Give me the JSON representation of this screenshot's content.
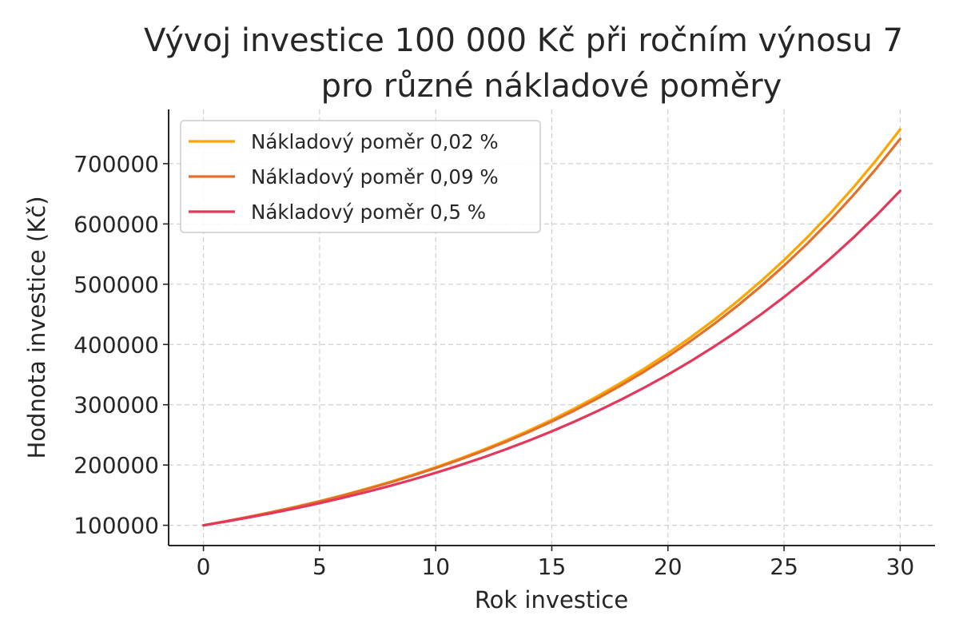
{
  "chart_data": {
    "type": "line",
    "title_lines": [
      "Vývoj investice 100 000 Kč při ročním výnosu 7",
      "pro různé nákladové poměry"
    ],
    "xlabel": "Rok investice",
    "ylabel": "Hodnota investice (Kč)",
    "xlim": [
      -1.5,
      31.5
    ],
    "ylim": [
      66400,
      790000
    ],
    "xticks": [
      0,
      5,
      10,
      15,
      20,
      25,
      30
    ],
    "yticks": [
      100000,
      200000,
      300000,
      400000,
      500000,
      600000,
      700000
    ],
    "grid": true,
    "legend_position": "top-left",
    "x": [
      0,
      1,
      2,
      3,
      4,
      5,
      6,
      7,
      8,
      9,
      10,
      11,
      12,
      13,
      14,
      15,
      16,
      17,
      18,
      19,
      20,
      21,
      22,
      23,
      24,
      25,
      26,
      27,
      28,
      29,
      30
    ],
    "series": [
      {
        "name": "Nákladový poměr 0,02 %",
        "color": "#FFA500",
        "values": [
          100000,
          106979,
          114445,
          122433,
          130978,
          140119,
          149899,
          160361,
          171553,
          183526,
          196335,
          210038,
          224697,
          240379,
          257156,
          275103,
          294304,
          314844,
          336818,
          360335,
          385474,
          412377,
          441158,
          471948,
          504886,
          540124,
          577821,
          618149,
          661291,
          707445,
          756820
        ]
      },
      {
        "name": "Nákladový poměr 0,09 %",
        "color": "#E2702B",
        "values": [
          100000,
          106904,
          114285,
          122175,
          130611,
          139628,
          149268,
          159574,
          170592,
          182370,
          194961,
          208422,
          222812,
          238195,
          254641,
          272222,
          291017,
          311109,
          332589,
          355552,
          380101,
          406344,
          434399,
          464391,
          496454,
          530731,
          567374,
          606547,
          648424,
          693193,
          741053
        ]
      },
      {
        "name": "Nákladový poměr 0,5 %",
        "color": "#E3385A",
        "values": [
          100000,
          106465,
          113348,
          120676,
          128477,
          136783,
          145626,
          155041,
          165064,
          175736,
          187097,
          199192,
          212070,
          225780,
          240376,
          255916,
          272461,
          290075,
          308828,
          328793,
          350049,
          372679,
          396772,
          422423,
          449732,
          478806,
          509761,
          542716,
          577801,
          615155,
          654924
        ]
      }
    ]
  }
}
